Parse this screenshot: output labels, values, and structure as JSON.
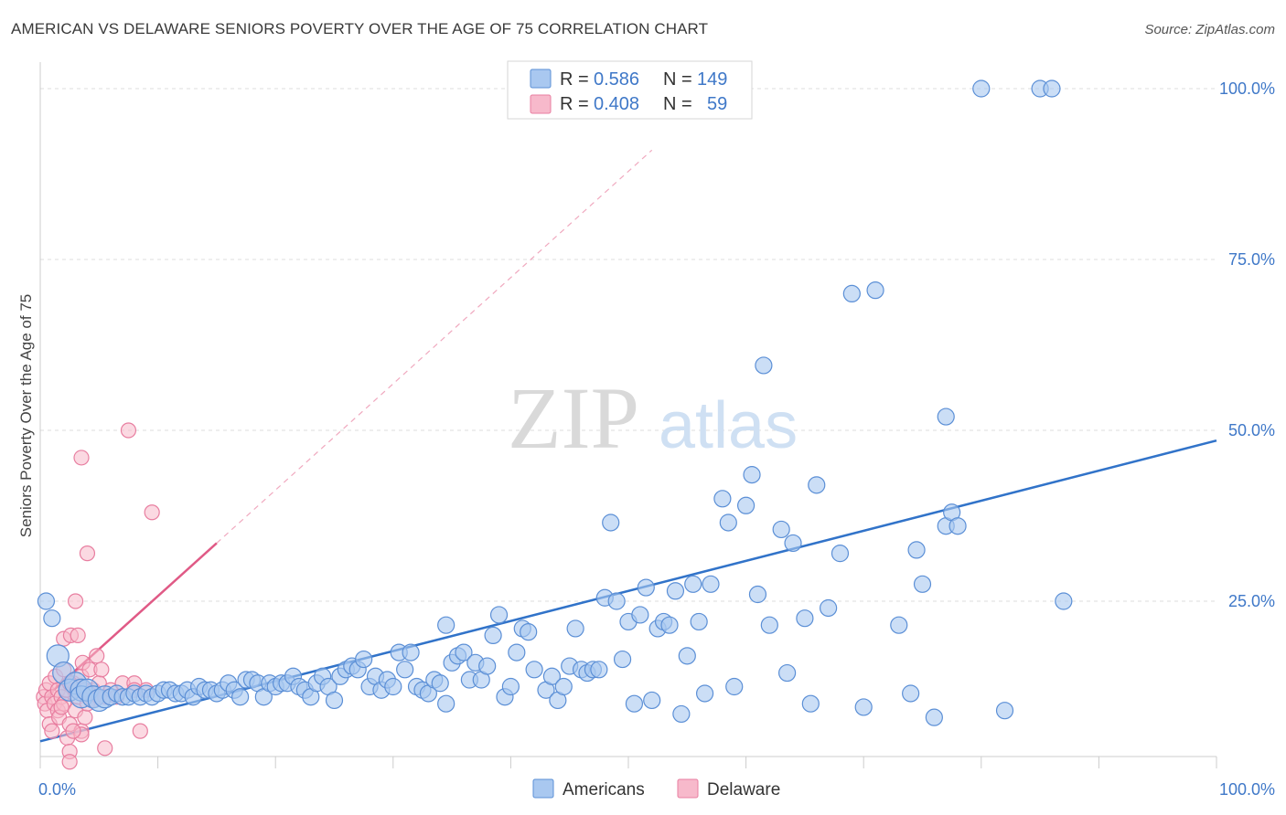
{
  "title": "AMERICAN VS DELAWARE SENIORS POVERTY OVER THE AGE OF 75 CORRELATION CHART",
  "source": "Source: ZipAtlas.com",
  "watermark": {
    "zip": "ZIP",
    "atlas": "atlas"
  },
  "legend_top": [
    {
      "r_label": "R =",
      "r_value": "0.586",
      "n_label": "N =",
      "n_value": "149"
    },
    {
      "r_label": "R =",
      "r_value": "0.408",
      "n_label": "N =",
      "n_value": "59"
    }
  ],
  "colors": {
    "americans_fill": "#a9c8f0",
    "americans_stroke": "#5b8fd6",
    "americans_line": "#3173c9",
    "delaware_fill": "#f7b9cb",
    "delaware_stroke": "#e87ea0",
    "delaware_line": "#e05a86",
    "tick": "#3f78c8",
    "grid": "#dddddd"
  },
  "chart_data": {
    "type": "scatter",
    "title": "AMERICAN VS DELAWARE SENIORS POVERTY OVER THE AGE OF 75 CORRELATION CHART",
    "xlabel": "",
    "ylabel": "Seniors Poverty Over the Age of 75",
    "xlim": [
      0,
      100
    ],
    "ylim": [
      0,
      100
    ],
    "x_tick_labels": [
      "0.0%",
      "100.0%"
    ],
    "y_tick_labels": [
      "25.0%",
      "50.0%",
      "75.0%",
      "100.0%"
    ],
    "y_ticks": [
      25,
      50,
      75,
      100
    ],
    "grid": true,
    "legend_position": "top-center",
    "series": [
      {
        "name": "Americans",
        "regression": {
          "x": [
            0,
            100
          ],
          "y": [
            4.5,
            48.5
          ]
        },
        "points": [
          [
            0.5,
            25
          ],
          [
            1,
            22.5
          ],
          [
            1.5,
            17
          ],
          [
            2,
            14.5
          ],
          [
            2.5,
            12
          ],
          [
            3,
            13
          ],
          [
            3.5,
            12
          ],
          [
            3.5,
            11
          ],
          [
            4,
            12
          ],
          [
            4.5,
            11
          ],
          [
            5,
            10.5
          ],
          [
            5.5,
            11
          ],
          [
            6,
            11
          ],
          [
            6.5,
            11.5
          ],
          [
            7,
            11
          ],
          [
            7.5,
            11
          ],
          [
            8,
            11.5
          ],
          [
            8.5,
            11
          ],
          [
            9,
            11.5
          ],
          [
            9.5,
            11
          ],
          [
            10,
            11.5
          ],
          [
            10.5,
            12
          ],
          [
            11,
            12
          ],
          [
            11.5,
            11.5
          ],
          [
            12,
            11.5
          ],
          [
            12.5,
            12
          ],
          [
            13,
            11
          ],
          [
            13.5,
            12.5
          ],
          [
            14,
            12
          ],
          [
            14.5,
            12
          ],
          [
            15,
            11.5
          ],
          [
            15.5,
            12
          ],
          [
            16,
            13
          ],
          [
            16.5,
            12
          ],
          [
            17,
            11
          ],
          [
            17.5,
            13.5
          ],
          [
            18,
            13.5
          ],
          [
            18.5,
            13
          ],
          [
            19,
            11
          ],
          [
            19.5,
            13
          ],
          [
            20,
            12.5
          ],
          [
            20.5,
            13
          ],
          [
            21,
            13
          ],
          [
            21.5,
            14
          ],
          [
            22,
            12.5
          ],
          [
            22.5,
            12
          ],
          [
            23,
            11
          ],
          [
            23.5,
            13
          ],
          [
            24,
            14
          ],
          [
            24.5,
            12.5
          ],
          [
            25,
            10.5
          ],
          [
            25.5,
            14
          ],
          [
            26,
            15
          ],
          [
            26.5,
            15.5
          ],
          [
            27,
            15
          ],
          [
            27.5,
            16.5
          ],
          [
            28,
            12.5
          ],
          [
            28.5,
            14
          ],
          [
            29,
            12
          ],
          [
            29.5,
            13.5
          ],
          [
            30,
            12.5
          ],
          [
            30.5,
            17.5
          ],
          [
            31,
            15
          ],
          [
            31.5,
            17.5
          ],
          [
            32,
            12.5
          ],
          [
            32.5,
            12
          ],
          [
            33,
            11.5
          ],
          [
            33.5,
            13.5
          ],
          [
            34,
            13
          ],
          [
            34.5,
            10
          ],
          [
            34.5,
            21.5
          ],
          [
            35,
            16
          ],
          [
            35.5,
            17
          ],
          [
            36,
            17.5
          ],
          [
            36.5,
            13.5
          ],
          [
            37,
            16
          ],
          [
            37.5,
            13.5
          ],
          [
            38,
            15.5
          ],
          [
            38.5,
            20
          ],
          [
            39,
            23
          ],
          [
            39.5,
            11
          ],
          [
            40,
            12.5
          ],
          [
            40.5,
            17.5
          ],
          [
            41,
            21
          ],
          [
            41.5,
            20.5
          ],
          [
            42,
            15
          ],
          [
            43,
            12
          ],
          [
            43.5,
            14
          ],
          [
            44,
            10.5
          ],
          [
            44.5,
            12.5
          ],
          [
            45,
            15.5
          ],
          [
            45.5,
            21
          ],
          [
            46,
            15
          ],
          [
            46.5,
            14.5
          ],
          [
            47,
            15
          ],
          [
            47.5,
            15
          ],
          [
            48,
            25.5
          ],
          [
            48.5,
            36.5
          ],
          [
            49,
            25
          ],
          [
            49.5,
            16.5
          ],
          [
            50,
            22
          ],
          [
            50.5,
            10
          ],
          [
            51,
            23
          ],
          [
            51.5,
            27
          ],
          [
            52,
            10.5
          ],
          [
            52.5,
            21
          ],
          [
            53,
            22
          ],
          [
            53.5,
            21.5
          ],
          [
            54,
            26.5
          ],
          [
            54.5,
            8.5
          ],
          [
            55,
            17
          ],
          [
            55.5,
            27.5
          ],
          [
            56,
            22
          ],
          [
            56.5,
            11.5
          ],
          [
            57,
            27.5
          ],
          [
            58,
            40
          ],
          [
            58.5,
            36.5
          ],
          [
            59,
            12.5
          ],
          [
            60,
            39
          ],
          [
            60.5,
            43.5
          ],
          [
            61,
            26
          ],
          [
            61.5,
            59.5
          ],
          [
            62,
            21.5
          ],
          [
            63,
            35.5
          ],
          [
            63.5,
            14.5
          ],
          [
            64,
            33.5
          ],
          [
            65,
            22.5
          ],
          [
            65.5,
            10
          ],
          [
            66,
            42
          ],
          [
            67,
            24
          ],
          [
            68,
            32
          ],
          [
            69,
            70
          ],
          [
            70,
            9.5
          ],
          [
            71,
            70.5
          ],
          [
            73,
            21.5
          ],
          [
            74,
            11.5
          ],
          [
            74.5,
            32.5
          ],
          [
            75,
            27.5
          ],
          [
            76,
            8
          ],
          [
            77,
            52
          ],
          [
            77,
            36
          ],
          [
            77.5,
            38
          ],
          [
            78,
            36
          ],
          [
            82,
            9
          ],
          [
            87,
            25
          ],
          [
            80,
            100
          ],
          [
            85,
            100
          ],
          [
            86,
            100
          ]
        ]
      },
      {
        "name": "Delaware",
        "regression": {
          "x": [
            0.5,
            15
          ],
          "y": [
            11,
            33.5
          ]
        },
        "regression_dashed_extension": {
          "x": [
            15,
            52
          ],
          "y": [
            33.5,
            91
          ]
        },
        "points": [
          [
            0.3,
            11
          ],
          [
            0.4,
            10
          ],
          [
            0.5,
            12
          ],
          [
            0.6,
            9
          ],
          [
            0.8,
            13
          ],
          [
            0.8,
            7
          ],
          [
            1,
            11
          ],
          [
            1,
            6
          ],
          [
            1.2,
            10
          ],
          [
            1.3,
            14
          ],
          [
            1.5,
            12
          ],
          [
            1.5,
            9
          ],
          [
            1.6,
            8
          ],
          [
            1.8,
            11
          ],
          [
            2,
            10
          ],
          [
            2,
            15
          ],
          [
            2,
            19.5
          ],
          [
            2.2,
            12
          ],
          [
            2.3,
            5
          ],
          [
            2.5,
            7
          ],
          [
            2.5,
            3
          ],
          [
            2.5,
            1.5
          ],
          [
            2.6,
            20
          ],
          [
            2.8,
            13
          ],
          [
            3,
            12
          ],
          [
            3,
            25
          ],
          [
            3,
            9
          ],
          [
            3.2,
            11
          ],
          [
            3.2,
            20
          ],
          [
            3.5,
            14
          ],
          [
            3.5,
            6
          ],
          [
            3.5,
            5.5
          ],
          [
            3.6,
            16
          ],
          [
            3.8,
            12
          ],
          [
            3.8,
            8
          ],
          [
            4,
            10
          ],
          [
            4,
            32
          ],
          [
            4.2,
            15
          ],
          [
            4.5,
            12
          ],
          [
            4.5,
            10.5
          ],
          [
            4.8,
            17
          ],
          [
            5,
            11
          ],
          [
            5,
            13
          ],
          [
            5.2,
            15
          ],
          [
            5.5,
            11
          ],
          [
            5.5,
            3.5
          ],
          [
            6,
            12
          ],
          [
            6.5,
            11
          ],
          [
            7,
            13
          ],
          [
            7.5,
            50
          ],
          [
            8,
            13
          ],
          [
            8,
            12
          ],
          [
            8.5,
            6
          ],
          [
            9,
            12
          ],
          [
            9.5,
            38
          ],
          [
            3.5,
            46
          ],
          [
            2.5,
            13
          ],
          [
            1.8,
            9.5
          ],
          [
            2.8,
            6
          ]
        ]
      }
    ]
  },
  "bottom_legend": [
    {
      "label": "Americans"
    },
    {
      "label": "Delaware"
    }
  ]
}
